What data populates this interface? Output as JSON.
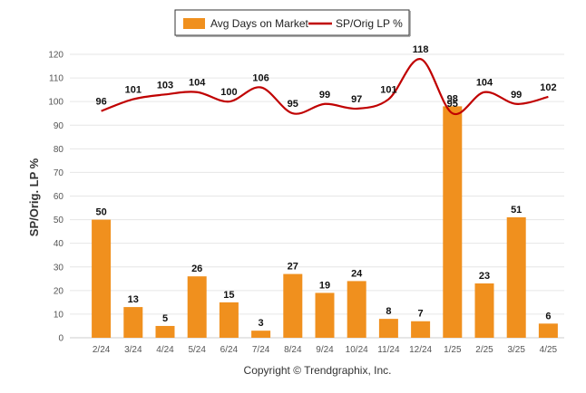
{
  "chart_data": {
    "type": "bar+line",
    "title": "",
    "xlabel": "",
    "ylabel": "SP/Orig. LP %",
    "ylim": [
      0,
      120
    ],
    "yticks": [
      0,
      10,
      20,
      30,
      40,
      50,
      60,
      70,
      80,
      90,
      100,
      110,
      120
    ],
    "grid": true,
    "legend_position": "top-center",
    "categories": [
      "2/24",
      "3/24",
      "4/24",
      "5/24",
      "6/24",
      "7/24",
      "8/24",
      "9/24",
      "10/24",
      "11/24",
      "12/24",
      "1/25",
      "2/25",
      "3/25",
      "4/25"
    ],
    "series": [
      {
        "name": "Avg Days on Market",
        "type": "bar",
        "color": "#f0901e",
        "values": [
          50,
          13,
          5,
          26,
          15,
          3,
          27,
          19,
          24,
          8,
          7,
          98,
          23,
          51,
          6
        ]
      },
      {
        "name": "SP/Orig LP %",
        "type": "line",
        "color": "#c00000",
        "values": [
          96,
          101,
          103,
          104,
          100,
          106,
          95,
          99,
          97,
          101,
          118,
          95,
          104,
          99,
          102
        ]
      }
    ]
  },
  "footer": {
    "credit": "Copyright © Trendgraphix, Inc."
  }
}
